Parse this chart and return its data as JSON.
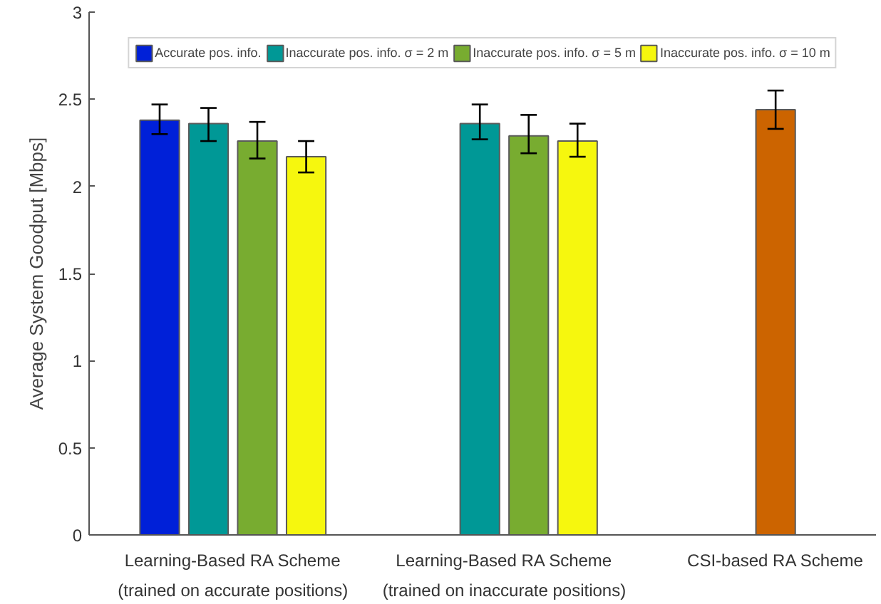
{
  "chart_data": {
    "type": "bar",
    "ylabel": "Average System Goodput [Mbps]",
    "categories": [
      "Learning-Based RA Scheme\n(trained on accurate positions)",
      "Learning-Based RA Scheme\n(trained on inaccurate positions)",
      "CSI-based RA Scheme"
    ],
    "series": [
      {
        "name": "Accurate pos. info.",
        "color": "#0020d8",
        "values": [
          2.38,
          null,
          null
        ],
        "errors": [
          [
            2.3,
            2.47
          ],
          null,
          null
        ]
      },
      {
        "name": "Inaccurate pos. info. σ = 2 m",
        "color": "#009896",
        "values": [
          2.36,
          2.36,
          null
        ],
        "errors": [
          [
            2.26,
            2.45
          ],
          [
            2.27,
            2.47
          ],
          null
        ]
      },
      {
        "name": "Inaccurate pos. info. σ = 5 m",
        "color": "#78ac30",
        "values": [
          2.26,
          2.29,
          null
        ],
        "errors": [
          [
            2.16,
            2.37
          ],
          [
            2.19,
            2.41
          ],
          null
        ]
      },
      {
        "name": "Inaccurate pos. info. σ = 10 m",
        "color": "#f6f70e",
        "values": [
          2.17,
          2.26,
          null
        ],
        "errors": [
          [
            2.08,
            2.26
          ],
          [
            2.17,
            2.36
          ],
          null
        ]
      },
      {
        "color": "#cc6400",
        "values": [
          null,
          null,
          2.44
        ],
        "errors": [
          null,
          null,
          [
            2.33,
            2.55
          ]
        ]
      }
    ],
    "ylim": [
      0,
      3
    ],
    "yticks": [
      0,
      0.5,
      1,
      1.5,
      2,
      2.5,
      3
    ],
    "grid": false,
    "legend": "top"
  }
}
